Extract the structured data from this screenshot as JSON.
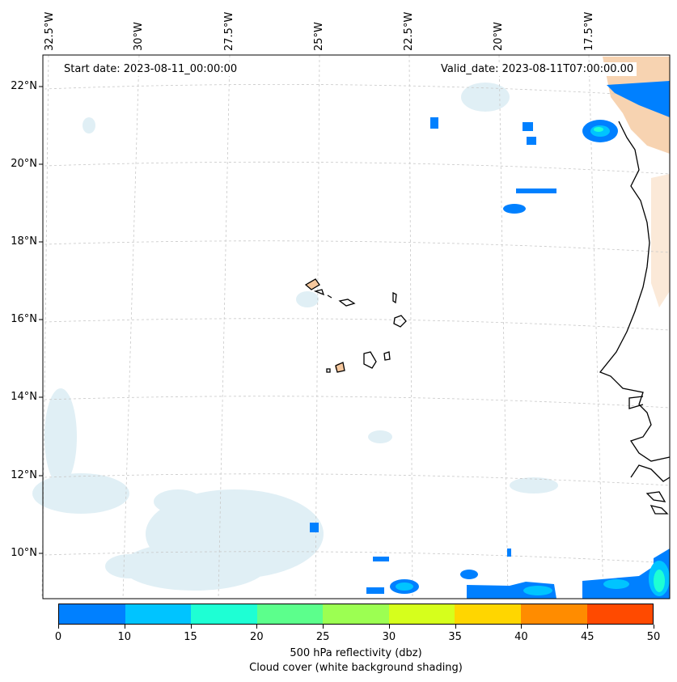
{
  "annotations": {
    "start": "Start date: 2023-08-11_00:00:00",
    "valid": "Valid_date: 2023-08-11T07:00:00.00"
  },
  "longitude_labels": [
    "32.5°W",
    "30°W",
    "27.5°W",
    "25°W",
    "22.5°W",
    "20°W",
    "17.5°W"
  ],
  "latitude_labels": [
    "22°N",
    "20°N",
    "18°N",
    "16°N",
    "14°N",
    "12°N",
    "10°N"
  ],
  "colorbar": {
    "tick_labels": [
      "0",
      "10",
      "15",
      "20",
      "25",
      "30",
      "35",
      "40",
      "45",
      "50"
    ],
    "colors": [
      "#0080ff",
      "#00c4ff",
      "#1effd4",
      "#5cff8c",
      "#9cff52",
      "#d6ff1c",
      "#ffd600",
      "#ff8c00",
      "#ff4a00"
    ],
    "label_line1": "500 hPa reflectivity (dbz)",
    "label_line2": "Cloud cover (white background shading)"
  },
  "colors": {
    "coast": "#000000",
    "grid": "#c8c8c8",
    "cloud": "#d6eaf2",
    "land_warm": "#f6c89e"
  }
}
